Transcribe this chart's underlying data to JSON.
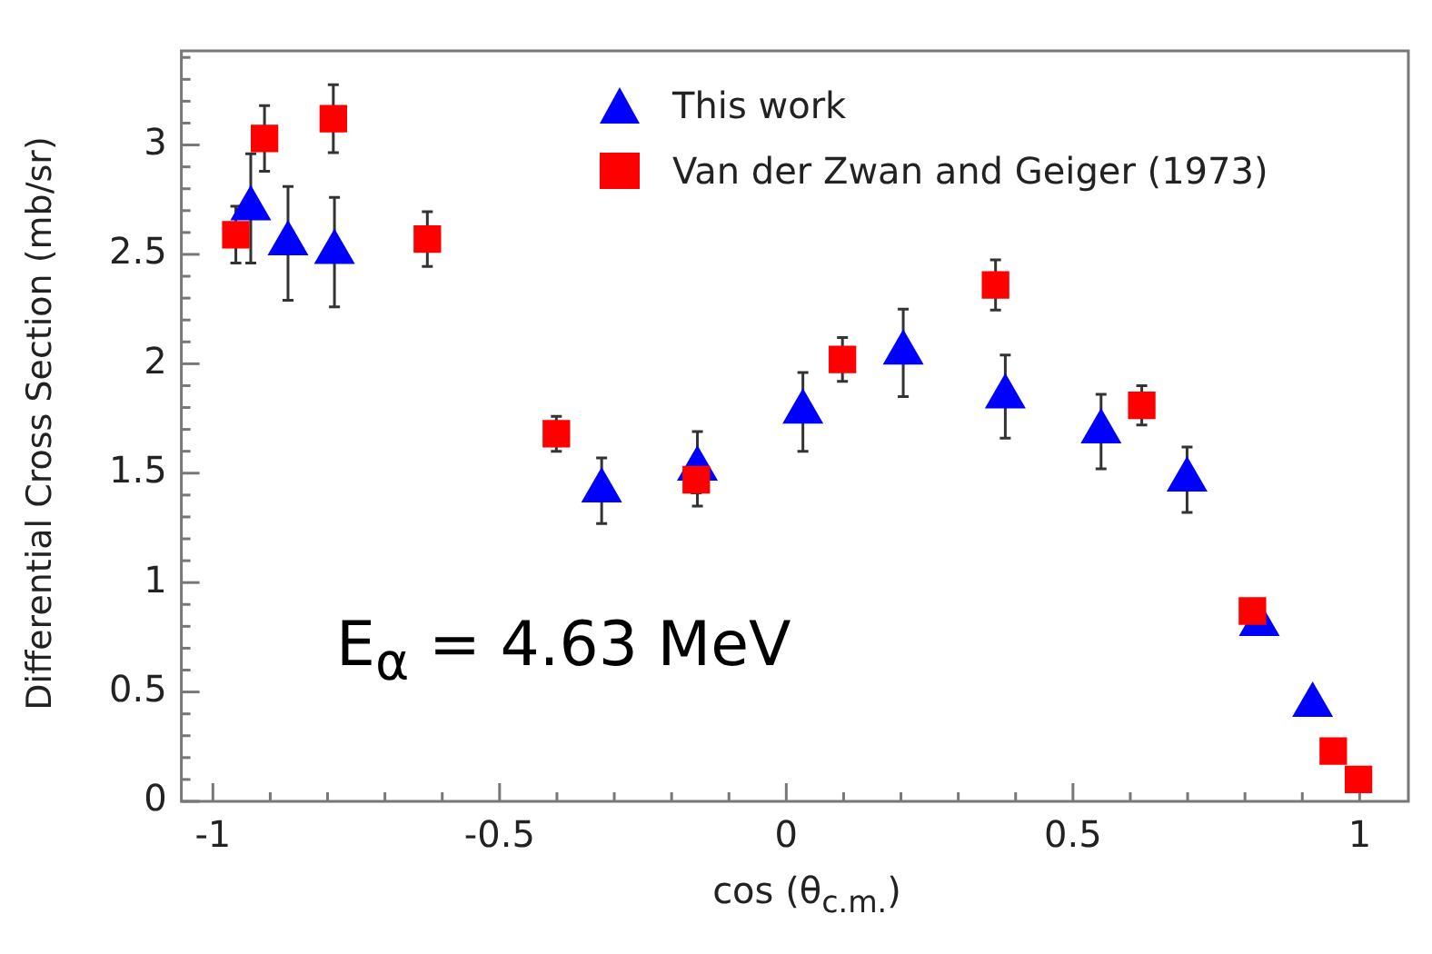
{
  "chart_data": {
    "type": "scatter",
    "xlabel": "cos (θ$_{c.m.}$)",
    "ylabel": "Differential Cross Section (mb/sr)",
    "xlim": [
      -1.055,
      1.085
    ],
    "ylim": [
      0,
      3.43
    ],
    "xticks": [
      {
        "value": -1,
        "label": "-1"
      },
      {
        "value": -0.9,
        "label": null
      },
      {
        "value": -0.8,
        "label": null
      },
      {
        "value": -0.7,
        "label": null
      },
      {
        "value": -0.6,
        "label": null
      },
      {
        "value": -0.5,
        "label": "-0.5"
      },
      {
        "value": -0.4,
        "label": null
      },
      {
        "value": -0.3,
        "label": null
      },
      {
        "value": -0.2,
        "label": null
      },
      {
        "value": -0.1,
        "label": null
      },
      0,
      {
        "value": 0.1,
        "label": null
      },
      {
        "value": 0.2,
        "label": null
      },
      {
        "value": 0.3,
        "label": null
      },
      {
        "value": 0.4,
        "label": null
      },
      0.5,
      {
        "value": 0.6,
        "label": null
      },
      {
        "value": 0.7,
        "label": null
      },
      {
        "value": 0.8,
        "label": null
      },
      {
        "value": 0.9,
        "label": null
      },
      1
    ],
    "yticks": [
      0,
      {
        "value": 0.1,
        "label": null
      },
      {
        "value": 0.2,
        "label": null
      },
      {
        "value": 0.3,
        "label": null
      },
      {
        "value": 0.4,
        "label": null
      },
      0.5,
      {
        "value": 0.6,
        "label": null
      },
      {
        "value": 0.7,
        "label": null
      },
      {
        "value": 0.8,
        "label": null
      },
      {
        "value": 0.9,
        "label": null
      },
      1,
      {
        "value": 1.1,
        "label": null
      },
      {
        "value": 1.2,
        "label": null
      },
      {
        "value": 1.3,
        "label": null
      },
      {
        "value": 1.4,
        "label": null
      },
      1.5,
      {
        "value": 1.6,
        "label": null
      },
      {
        "value": 1.7,
        "label": null
      },
      {
        "value": 1.8,
        "label": null
      },
      {
        "value": 1.9,
        "label": null
      },
      2,
      {
        "value": 2.1,
        "label": null
      },
      {
        "value": 2.2,
        "label": null
      },
      {
        "value": 2.3,
        "label": null
      },
      {
        "value": 2.4,
        "label": null
      },
      2.5,
      {
        "value": 2.6,
        "label": null
      },
      {
        "value": 2.7,
        "label": null
      },
      {
        "value": 2.8,
        "label": null
      },
      {
        "value": 2.9,
        "label": null
      },
      3,
      {
        "value": 3.1,
        "label": null
      },
      {
        "value": 3.2,
        "label": null
      },
      {
        "value": 3.3,
        "label": null
      },
      {
        "value": 3.4,
        "label": null
      }
    ],
    "grid": false,
    "legend": "top right",
    "annotations": [
      "E$_{α}$ = 4.63 MeV"
    ],
    "series": [
      {
        "name": "This work",
        "color": "#0000ff",
        "marker": "triangle",
        "x": [
          -0.934,
          -0.869,
          -0.788,
          -0.322,
          -0.155,
          0.029,
          0.204,
          0.382,
          0.549,
          0.699,
          0.825,
          0.918
        ],
        "values": [
          2.71,
          2.55,
          2.51,
          1.42,
          1.52,
          1.78,
          2.05,
          1.85,
          1.69,
          1.47,
          0.81,
          0.44
        ],
        "errors": [
          0.25,
          0.26,
          0.25,
          0.15,
          0.17,
          0.18,
          0.2,
          0.19,
          0.17,
          0.15,
          null,
          null
        ]
      },
      {
        "name": "Van der Zwan and Geiger (1973)",
        "color": "#ff0000",
        "marker": "square",
        "x": [
          -0.96,
          -0.91,
          -0.79,
          -0.626,
          -0.401,
          -0.157,
          0.098,
          0.365,
          0.62,
          0.813,
          0.954,
          0.998
        ],
        "values": [
          2.59,
          3.03,
          3.12,
          2.57,
          1.68,
          1.47,
          2.02,
          2.36,
          1.81,
          0.87,
          0.23,
          0.1
        ],
        "errors": [
          0.13,
          0.15,
          0.155,
          0.125,
          0.08,
          0.06,
          0.1,
          0.115,
          0.09,
          null,
          null,
          null
        ]
      }
    ]
  }
}
